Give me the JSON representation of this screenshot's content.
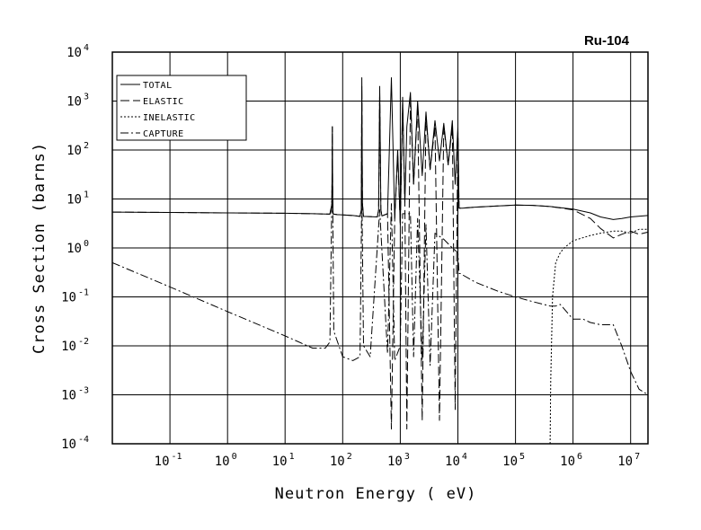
{
  "chart_data": {
    "type": "line",
    "title": "Ru-104",
    "xlabel": "Neutron Energy ( eV)",
    "ylabel": "Cross Section (barns)",
    "x_scale": "log",
    "y_scale": "log",
    "xlim": [
      0.01,
      20000000
    ],
    "ylim": [
      0.0001,
      10000
    ],
    "grid": true,
    "legend_position": "top-left",
    "x_ticks": [
      {
        "base": "10",
        "exp": "-1",
        "value": 0.1
      },
      {
        "base": "10",
        "exp": "0",
        "value": 1
      },
      {
        "base": "10",
        "exp": "1",
        "value": 10
      },
      {
        "base": "10",
        "exp": "2",
        "value": 100
      },
      {
        "base": "10",
        "exp": "3",
        "value": 1000
      },
      {
        "base": "10",
        "exp": "4",
        "value": 10000
      },
      {
        "base": "10",
        "exp": "5",
        "value": 100000
      },
      {
        "base": "10",
        "exp": "6",
        "value": 1000000
      },
      {
        "base": "10",
        "exp": "7",
        "value": 10000000
      }
    ],
    "y_ticks": [
      {
        "base": "10",
        "exp": "4",
        "value": 10000
      },
      {
        "base": "10",
        "exp": "3",
        "value": 1000
      },
      {
        "base": "10",
        "exp": "2",
        "value": 100
      },
      {
        "base": "10",
        "exp": "1",
        "value": 10
      },
      {
        "base": "10",
        "exp": "0",
        "value": 1
      },
      {
        "base": "10",
        "exp": "-1",
        "value": 0.1
      },
      {
        "base": "10",
        "exp": "-2",
        "value": 0.01
      },
      {
        "base": "10",
        "exp": "-3",
        "value": 0.001
      },
      {
        "base": "10",
        "exp": "-4",
        "value": 0.0001
      }
    ],
    "series": [
      {
        "name": "TOTAL",
        "dash": "solid",
        "x": [
          0.01,
          0.1,
          1,
          10,
          30,
          60,
          65,
          66,
          67,
          68,
          70,
          80,
          150,
          200,
          210,
          215,
          220,
          230,
          400,
          420,
          440,
          460,
          480,
          600,
          700,
          800,
          900,
          1000,
          1100,
          1200,
          1300,
          1500,
          1700,
          2000,
          2400,
          2800,
          3300,
          4000,
          4800,
          5700,
          6800,
          8000,
          9000,
          10000,
          10500,
          11000,
          12000,
          20000,
          50000,
          100000,
          200000,
          400000,
          1000000,
          2000000,
          3000000,
          5000000,
          7000000,
          10000000,
          20000000
        ],
        "y": [
          5.4,
          5.3,
          5.2,
          5.1,
          5.0,
          4.9,
          8.0,
          300,
          10.0,
          5.0,
          4.9,
          4.8,
          4.6,
          4.4,
          6.0,
          3000,
          8.0,
          4.4,
          4.3,
          6.0,
          2000,
          6.0,
          4.5,
          5.0,
          3000,
          4.0,
          100,
          3.0,
          1200,
          8.0,
          300,
          1500,
          20,
          1000,
          30,
          600,
          40,
          400,
          60,
          350,
          50,
          400,
          20,
          300,
          6.5,
          6.5,
          6.5,
          6.8,
          7.2,
          7.5,
          7.4,
          7.0,
          6.2,
          5.2,
          4.3,
          3.8,
          4.0,
          4.3,
          4.6
        ]
      },
      {
        "name": "ELASTIC",
        "dash": "dashed",
        "x": [
          0.01,
          0.1,
          1,
          10,
          30,
          60,
          65,
          66,
          67,
          68,
          70,
          80,
          150,
          200,
          210,
          215,
          220,
          230,
          400,
          420,
          440,
          460,
          480,
          600,
          700,
          800,
          900,
          1000,
          1100,
          1200,
          1300,
          1500,
          1700,
          2000,
          2400,
          2800,
          3300,
          4000,
          4800,
          5700,
          6800,
          8000,
          9000,
          10000,
          10500,
          11000,
          12000,
          20000,
          50000,
          100000,
          200000,
          400000,
          1000000,
          2000000,
          3000000,
          5000000,
          7000000,
          10000000,
          14000000,
          20000000
        ],
        "y": [
          5.4,
          5.3,
          5.2,
          5.1,
          5.0,
          4.9,
          8.0,
          300,
          10.0,
          5.0,
          4.9,
          4.8,
          4.6,
          4.4,
          6.0,
          2000,
          8.0,
          4.4,
          4.3,
          6.0,
          1500,
          6.0,
          4.5,
          5.0,
          0.0002,
          4.0,
          80,
          3.0,
          900,
          8.0,
          0.0002,
          1200,
          20,
          800,
          0.0003,
          500,
          40,
          300,
          0.0003,
          300,
          50,
          300,
          0.0005,
          250,
          6.5,
          6.5,
          6.5,
          6.8,
          7.2,
          7.5,
          7.4,
          7.0,
          6.0,
          4.0,
          2.5,
          1.6,
          1.9,
          2.2,
          1.9,
          2.1
        ]
      },
      {
        "name": "INELASTIC",
        "dash": "dotted",
        "x": [
          400000,
          410000,
          440000,
          500000,
          600000,
          700000,
          1000000,
          2000000,
          3000000,
          5000000,
          7000000,
          10000000,
          14000000,
          20000000
        ],
        "y": [
          0.0001,
          0.002,
          0.1,
          0.5,
          0.8,
          1.0,
          1.4,
          1.8,
          2.0,
          2.2,
          2.2,
          2.0,
          2.4,
          2.4
        ]
      },
      {
        "name": "CAPTURE",
        "dash": "dashdot",
        "x": [
          0.01,
          0.1,
          1,
          10,
          30,
          50,
          60,
          66,
          70,
          100,
          150,
          200,
          215,
          230,
          300,
          440,
          600,
          700,
          800,
          1000,
          1100,
          1500,
          1700,
          2000,
          2400,
          2800,
          3300,
          4000,
          5700,
          8000,
          10000,
          10500,
          11000,
          20000,
          50000,
          100000,
          200000,
          400000,
          500000,
          600000,
          1000000,
          1200000,
          1500000,
          2000000,
          3000000,
          5000000,
          7000000,
          10000000,
          14000000,
          20000000
        ],
        "y": [
          0.5,
          0.16,
          0.05,
          0.016,
          0.009,
          0.009,
          0.012,
          60,
          0.02,
          0.006,
          0.005,
          0.006,
          15,
          0.01,
          0.006,
          6,
          0.007,
          8,
          0.005,
          0.01,
          5,
          5,
          0.006,
          4,
          0.005,
          3,
          0.004,
          2,
          1.5,
          1,
          0.8,
          0.3,
          0.3,
          0.2,
          0.13,
          0.1,
          0.08,
          0.065,
          0.065,
          0.07,
          0.035,
          0.035,
          0.035,
          0.03,
          0.027,
          0.027,
          0.01,
          0.003,
          0.0013,
          0.001
        ]
      }
    ]
  }
}
